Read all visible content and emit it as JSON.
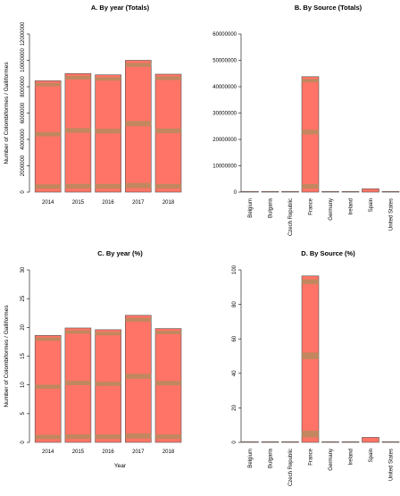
{
  "colors": {
    "bar_fill": "#FF7466",
    "bar_band": "#B38C5E",
    "bar_stroke": "#555555",
    "axis": "#000000"
  },
  "chart_data": [
    {
      "id": "A",
      "type": "bar",
      "title": "A. By year (Totals)",
      "xlabel": "",
      "ylabel": "Number of Colombiformes / Galliformes",
      "categories": [
        "2014",
        "2015",
        "2016",
        "2017",
        "2018"
      ],
      "values": [
        8450000,
        9000000,
        8900000,
        10000000,
        8950000
      ],
      "ylim": [
        0,
        12000000
      ],
      "yticks": [
        "0",
        "2000000",
        "4000000",
        "6000000",
        "8000000",
        "10000000",
        "12000000"
      ],
      "label_rotation": 90,
      "grid": false
    },
    {
      "id": "B",
      "type": "bar",
      "title": "B. By Source (Totals)",
      "xlabel": "",
      "ylabel": "",
      "categories": [
        "Belgium",
        "Bulgaria",
        "Czech Republic",
        "France",
        "Germany",
        "Ireland",
        "Spain",
        "United States"
      ],
      "values": [
        150000,
        30000,
        20000,
        43800000,
        30000,
        40000,
        1300000,
        100000
      ],
      "ylim": [
        0,
        60000000
      ],
      "yticks": [
        "0",
        "10000000",
        "20000000",
        "30000000",
        "40000000",
        "50000000",
        "60000000"
      ],
      "label_rotation": 0,
      "grid": false
    },
    {
      "id": "C",
      "type": "bar",
      "title": "C. By year (%)",
      "xlabel": "Year",
      "ylabel": "Number of Colombiformes / Galliformes",
      "categories": [
        "2014",
        "2015",
        "2016",
        "2017",
        "2018"
      ],
      "values": [
        18.6,
        19.9,
        19.6,
        22.1,
        19.8
      ],
      "ylim": [
        0,
        30
      ],
      "yticks": [
        "0",
        "5",
        "10",
        "15",
        "20",
        "25",
        "30"
      ],
      "label_rotation": 90,
      "grid": false
    },
    {
      "id": "D",
      "type": "bar",
      "title": "D. By Source (%)",
      "xlabel": "",
      "ylabel": "",
      "categories": [
        "Belgium",
        "Bulgaria",
        "Czech Republic",
        "France",
        "Germany",
        "Ireland",
        "Spain",
        "United States"
      ],
      "values": [
        0.3,
        0.1,
        0.05,
        96.5,
        0.05,
        0.1,
        2.9,
        0.2
      ],
      "ylim": [
        0,
        100
      ],
      "yticks": [
        "0",
        "20",
        "40",
        "60",
        "80",
        "100"
      ],
      "label_rotation": 90,
      "grid": false
    }
  ]
}
